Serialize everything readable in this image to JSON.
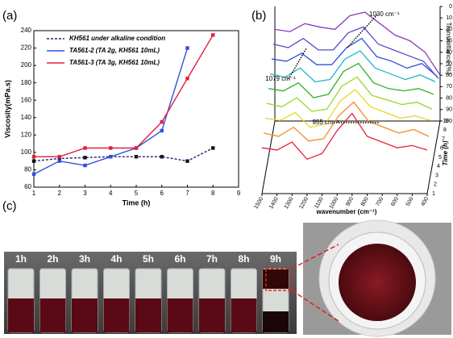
{
  "panel_labels": [
    "(a)",
    "(b)",
    "(c)"
  ],
  "chart_data": [
    {
      "type": "line",
      "xlabel": "Time (h)",
      "ylabel": "Viscosity(mPa.s)",
      "x": [
        1,
        2,
        3,
        4,
        5,
        6,
        7,
        8
      ],
      "xlim": [
        1,
        9
      ],
      "xticks": [
        1,
        2,
        3,
        4,
        5,
        6,
        7,
        8,
        9
      ],
      "ylim": [
        60,
        240
      ],
      "yticks": [
        60,
        80,
        100,
        120,
        140,
        160,
        180,
        200,
        220,
        240
      ],
      "legend": "upper-left",
      "series": [
        {
          "name": "KH561 under alkaline condition",
          "color": "#1a237e",
          "dashed": true,
          "values": [
            90,
            93,
            94,
            95,
            95,
            95,
            90,
            105
          ]
        },
        {
          "name": "TA561-2 (TA 2g, KH561 10mL)",
          "color": "#3050e0",
          "values": [
            75,
            90,
            85,
            95,
            105,
            125,
            220,
            null
          ]
        },
        {
          "name": "TA561-3 (TA 3g, KH561 10mL)",
          "color": "#e02040",
          "values": [
            95,
            95,
            105,
            105,
            105,
            135,
            185,
            235
          ]
        }
      ]
    },
    {
      "type": "waterfall",
      "xlabel": "wavenumber (cm⁻¹)",
      "ylabel": "Transmittance (%)",
      "zlabel": "Time (h)",
      "x": [
        1500,
        1400,
        1300,
        1200,
        1100,
        1000,
        900,
        800,
        700,
        600,
        500,
        400
      ],
      "xlim": [
        1500,
        400
      ],
      "xticks": [
        1500,
        1400,
        1300,
        1200,
        1100,
        1000,
        900,
        800,
        700,
        600,
        500,
        400
      ],
      "ylim": [
        100,
        0
      ],
      "yticks": [
        0,
        10,
        20,
        30,
        40,
        50,
        60,
        70,
        80,
        90,
        100
      ],
      "zlim": [
        1,
        9
      ],
      "zticks": [
        1,
        2,
        3,
        4,
        5,
        6,
        7,
        8,
        9
      ],
      "annotations": [
        "1030 cm⁻¹",
        "1079 cm⁻¹",
        "955 cm⁻¹"
      ],
      "series": [
        {
          "color": "#e8203a",
          "values": [
            60,
            62,
            55,
            70,
            65,
            45,
            30,
            50,
            55,
            60,
            58,
            62
          ]
        },
        {
          "color": "#f58a1f",
          "values": [
            55,
            58,
            50,
            62,
            60,
            40,
            28,
            45,
            50,
            55,
            52,
            58
          ]
        },
        {
          "color": "#e8d820",
          "values": [
            50,
            52,
            45,
            58,
            55,
            35,
            25,
            40,
            45,
            50,
            48,
            52
          ]
        },
        {
          "color": "#9ad62a",
          "values": [
            45,
            48,
            40,
            52,
            50,
            30,
            22,
            38,
            42,
            46,
            44,
            50
          ]
        },
        {
          "color": "#2ab32a",
          "values": [
            40,
            42,
            35,
            48,
            45,
            25,
            18,
            35,
            40,
            42,
            40,
            45
          ]
        },
        {
          "color": "#20b8c8",
          "values": [
            35,
            38,
            30,
            42,
            40,
            22,
            15,
            30,
            35,
            40,
            36,
            42
          ]
        },
        {
          "color": "#2a50e0",
          "values": [
            30,
            32,
            25,
            35,
            35,
            20,
            12,
            28,
            32,
            38,
            34,
            45
          ]
        },
        {
          "color": "#5a48c8",
          "values": [
            25,
            28,
            20,
            30,
            30,
            15,
            10,
            25,
            30,
            35,
            40,
            55
          ]
        },
        {
          "color": "#8a3ac0",
          "values": [
            20,
            22,
            15,
            18,
            20,
            8,
            5,
            15,
            25,
            30,
            40,
            60
          ]
        }
      ]
    }
  ],
  "photo": {
    "labels": [
      "1h",
      "2h",
      "3h",
      "4h",
      "5h",
      "6h",
      "7h",
      "8h",
      "9h"
    ]
  }
}
